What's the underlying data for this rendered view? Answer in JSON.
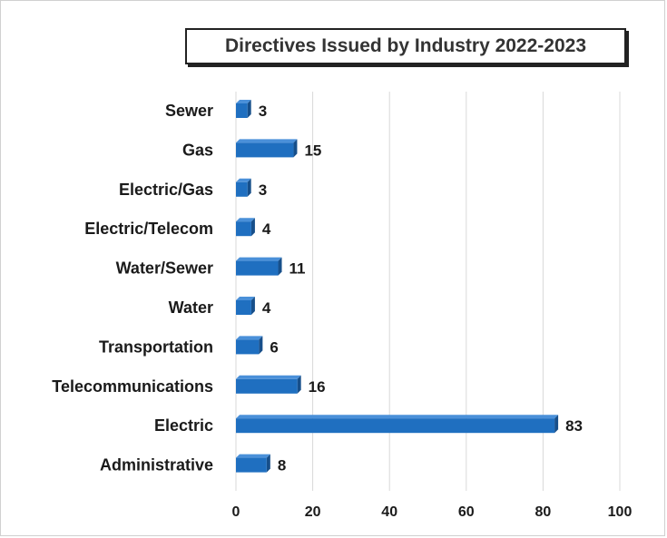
{
  "chart_data": {
    "type": "bar",
    "orientation": "horizontal",
    "title": "Directives Issued by Industry 2022-2023",
    "categories": [
      "Sewer",
      "Gas",
      "Electric/Gas",
      "Electric/Telecom",
      "Water/Sewer",
      "Water",
      "Transportation",
      "Telecommunications",
      "Electric",
      "Administrative"
    ],
    "values": [
      3,
      15,
      3,
      4,
      11,
      4,
      6,
      16,
      83,
      8
    ],
    "xlim": [
      0,
      100
    ],
    "xticks": [
      "0",
      "20",
      "40",
      "60",
      "80",
      "100"
    ],
    "xlabel": "",
    "ylabel": "",
    "grid": "vertical",
    "legend": "none",
    "colors": {
      "bar": "#1f6fc0",
      "bar_top": "#4a90d9",
      "bar_side": "#174f8a",
      "grid": "#d9d9d9"
    }
  }
}
